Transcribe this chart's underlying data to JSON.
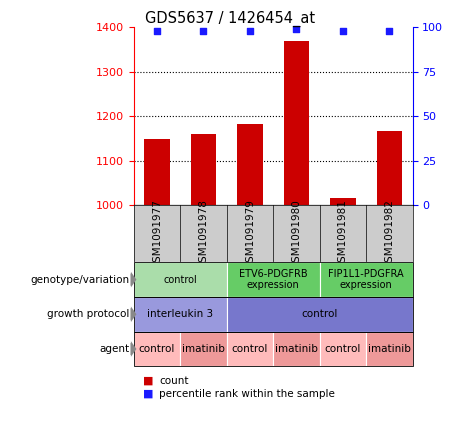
{
  "title": "GDS5637 / 1426454_at",
  "samples": [
    "GSM1091977",
    "GSM1091978",
    "GSM1091979",
    "GSM1091980",
    "GSM1091981",
    "GSM1091982"
  ],
  "counts": [
    1148,
    1160,
    1182,
    1370,
    1015,
    1168
  ],
  "percentiles": [
    98,
    98,
    98,
    99,
    98,
    98
  ],
  "ylim_left": [
    1000,
    1400
  ],
  "ylim_right": [
    0,
    100
  ],
  "yticks_left": [
    1000,
    1100,
    1200,
    1300,
    1400
  ],
  "yticks_right": [
    0,
    25,
    50,
    75,
    100
  ],
  "bar_color": "#cc0000",
  "percentile_color": "#1a1aff",
  "grid_lines": [
    1100,
    1200,
    1300
  ],
  "genotype_labels": [
    {
      "text": "control",
      "start": 0,
      "end": 2,
      "color": "#aaddaa"
    },
    {
      "text": "ETV6-PDGFRB\nexpression",
      "start": 2,
      "end": 4,
      "color": "#66cc66"
    },
    {
      "text": "FIP1L1-PDGFRA\nexpression",
      "start": 4,
      "end": 6,
      "color": "#66cc66"
    }
  ],
  "growth_labels": [
    {
      "text": "interleukin 3",
      "start": 0,
      "end": 2,
      "color": "#9999dd"
    },
    {
      "text": "control",
      "start": 2,
      "end": 6,
      "color": "#7777cc"
    }
  ],
  "agent_labels": [
    {
      "text": "control",
      "start": 0,
      "end": 1,
      "color": "#ffbbbb"
    },
    {
      "text": "imatinib",
      "start": 1,
      "end": 2,
      "color": "#ee9999"
    },
    {
      "text": "control",
      "start": 2,
      "end": 3,
      "color": "#ffbbbb"
    },
    {
      "text": "imatinib",
      "start": 3,
      "end": 4,
      "color": "#ee9999"
    },
    {
      "text": "control",
      "start": 4,
      "end": 5,
      "color": "#ffbbbb"
    },
    {
      "text": "imatinib",
      "start": 5,
      "end": 6,
      "color": "#ee9999"
    }
  ],
  "row_label_names": [
    "genotype/variation",
    "growth protocol",
    "agent"
  ],
  "legend_count_color": "#cc0000",
  "legend_percentile_color": "#1a1aff",
  "sample_box_color": "#cccccc",
  "background_color": "#ffffff"
}
